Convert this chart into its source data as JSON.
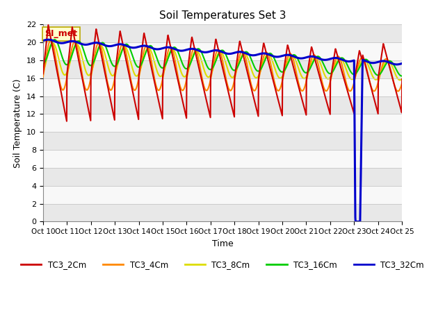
{
  "title": "Soil Temperatures Set 3",
  "xlabel": "Time",
  "ylabel": "Soil Temperature (C)",
  "ylim": [
    0,
    22
  ],
  "yticks": [
    0,
    2,
    4,
    6,
    8,
    10,
    12,
    14,
    16,
    18,
    20,
    22
  ],
  "xtick_labels": [
    "Oct 10",
    "Oct 11",
    "Oct 12",
    "Oct 13",
    "Oct 14",
    "Oct 15",
    "Oct 16",
    "Oct 17",
    "Oct 18",
    "Oct 19",
    "Oct 20",
    "Oct 21",
    "Oct 22",
    "Oct 23",
    "Oct 24",
    "Oct 25"
  ],
  "series_colors": {
    "TC3_2Cm": "#cc0000",
    "TC3_4Cm": "#ff8800",
    "TC3_8Cm": "#dddd00",
    "TC3_16Cm": "#00cc00",
    "TC3_32Cm": "#0000cc"
  },
  "annotation_text": "SI_met",
  "annotation_color": "#cc0000",
  "annotation_bg": "#ffffcc",
  "bg_color": "#ffffff",
  "band_colors": [
    "#e8e8e8",
    "#f8f8f8"
  ],
  "linewidth": 1.5
}
